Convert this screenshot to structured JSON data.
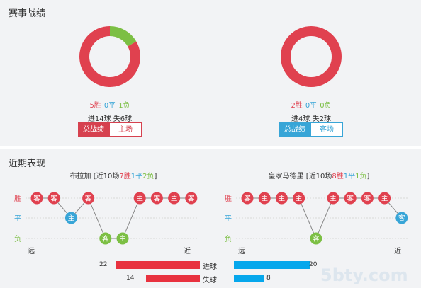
{
  "section1": {
    "title": "赛事战绩",
    "left": {
      "wins": "5胜",
      "draws": "0平",
      "losses": "1负",
      "goals": "进14球  失6球",
      "tab_active": "总战绩",
      "tab_other": "主场",
      "donut": {
        "win": 5,
        "draw": 0,
        "loss": 1
      }
    },
    "right": {
      "wins": "2胜",
      "draws": "0平",
      "losses": "0负",
      "goals": "进4球  失2球",
      "tab_active": "总战绩",
      "tab_other": "客场",
      "donut": {
        "win": 2,
        "draw": 0,
        "loss": 0
      }
    }
  },
  "section2": {
    "title": "近期表现",
    "left": {
      "team": "布拉加",
      "summary_prefix": "[近10场",
      "summary_wins": "7胜",
      "summary_draws": "1平",
      "summary_losses": "2负",
      "summary_suffix": "]",
      "far": "远",
      "near": "近",
      "results": [
        "胜",
        "胜",
        "平",
        "胜",
        "负",
        "负",
        "胜",
        "胜",
        "胜",
        "胜"
      ],
      "venues": [
        "客",
        "客",
        "主",
        "客",
        "客",
        "主",
        "主",
        "客",
        "主",
        "客"
      ]
    },
    "right": {
      "team": "皇家马德里",
      "summary_prefix": "[近10场",
      "summary_wins": "8胜",
      "summary_draws": "1平",
      "summary_losses": "1负",
      "summary_suffix": "]",
      "far": "远",
      "near": "近",
      "results": [
        "胜",
        "胜",
        "胜",
        "胜",
        "负",
        "胜",
        "胜",
        "胜",
        "胜",
        "平"
      ],
      "venues": [
        "客",
        "主",
        "主",
        "主",
        "客",
        "主",
        "客",
        "客",
        "主",
        "客"
      ]
    },
    "axis_labels": {
      "win": "胜",
      "draw": "平",
      "loss": "负"
    },
    "bars": {
      "goals_label": "进球",
      "conceded_label": "失球",
      "left_goals": 22,
      "left_conceded": 14,
      "right_goals": 20,
      "right_conceded": 8
    }
  },
  "colors": {
    "win": "#e0414f",
    "draw": "#38a5d7",
    "loss": "#7cbf44",
    "bar_red": "#e8323f",
    "bar_blue": "#06a7ec"
  },
  "watermark": "5bty.com"
}
